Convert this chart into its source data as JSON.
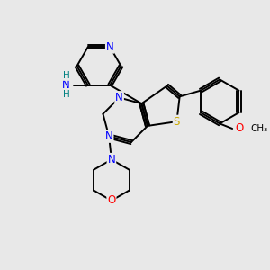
{
  "background_color": "#e8e8e8",
  "bond_color": "#000000",
  "atom_colors": {
    "N": "#0000ff",
    "O": "#ff0000",
    "S": "#ccaa00",
    "H": "#008080",
    "C": "#000000"
  },
  "figsize": [
    3.0,
    3.0
  ],
  "dpi": 100
}
